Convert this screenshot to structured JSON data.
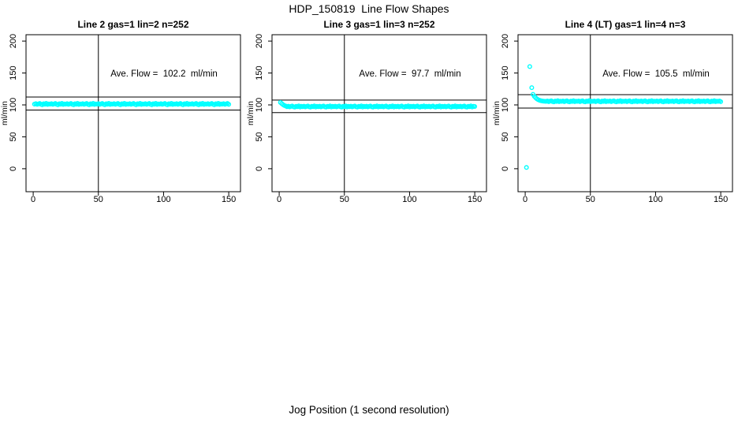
{
  "figure": {
    "main_title": "HDP_150819  Line Flow Shapes",
    "x_axis_label": "Jog Position (1 second resolution)",
    "background_color": "#ffffff",
    "point_color": "#00ffff",
    "axis_color": "#000000"
  },
  "chart_data": [
    {
      "type": "scatter",
      "title": "Line 2 gas=1 lin=2 n=252",
      "annotation": "Ave. Flow =  102.2  ml/min",
      "ave_flow_ml_min": 102.2,
      "ylabel": "ml/min",
      "xticks": [
        0,
        50,
        100,
        150
      ],
      "yticks": [
        0,
        50,
        100,
        150,
        200
      ],
      "xlim": [
        -5.5,
        159
      ],
      "ylim": [
        -36,
        210
      ],
      "hlines": [
        112.4,
        92.0
      ],
      "vline": 50,
      "pre_points": [],
      "band": {
        "x0": 1,
        "dx": 1,
        "y": [
          101.2,
          102,
          100.8,
          101.5,
          102.3,
          101,
          100.4,
          101.8,
          101.1,
          102.4,
          100.7,
          101.6,
          101.2,
          102,
          100.8,
          101.5,
          102.3,
          101,
          100.4,
          101.8,
          101.1,
          102.4,
          100.7,
          101.6,
          101.2,
          102,
          100.8,
          101.5,
          102.3,
          101,
          100.4,
          101.8,
          101.1,
          102.4,
          100.7,
          101.6,
          101.2,
          102,
          100.8,
          101.5,
          102.3,
          101,
          100.4,
          101.8,
          101.1,
          102.4,
          100.7,
          101.6,
          101.2,
          102,
          100.8,
          101.5,
          102.3,
          101,
          100.4,
          101.8,
          101.1,
          102.4,
          100.7,
          101.6,
          101.2,
          102,
          100.8,
          101.5,
          102.3,
          101,
          100.4,
          101.8,
          101.1,
          102.4,
          100.7,
          101.6,
          101.2,
          102,
          100.8,
          101.5,
          102.3,
          101,
          100.4,
          101.8,
          101.1,
          102.4,
          100.7,
          101.6,
          101.2,
          102,
          100.8,
          101.5,
          102.3,
          101,
          100.4,
          101.8,
          101.1,
          102.4,
          100.7,
          101.6,
          101.2,
          102,
          100.8,
          101.5,
          102.3,
          101,
          100.4,
          101.8,
          101.1,
          102.4,
          100.7,
          101.6,
          101.2,
          102,
          100.8,
          101.5,
          102.3,
          101,
          100.4,
          101.8,
          101.1,
          102.4,
          100.7,
          101.6,
          101.2,
          102,
          100.8,
          101.5,
          102.3,
          101,
          100.4,
          101.8,
          101.1,
          102.4,
          100.7,
          101.6,
          101.2,
          102,
          100.8,
          101.5,
          102.3,
          101,
          100.4,
          101.8,
          101.1,
          102.4,
          100.7,
          101.6,
          101.2,
          102,
          100.8,
          101.5,
          102.3,
          101
        ]
      }
    },
    {
      "type": "scatter",
      "title": "Line 3 gas=1 lin=3 n=252",
      "annotation": "Ave. Flow =  97.7  ml/min",
      "ave_flow_ml_min": 97.7,
      "ylabel": "ml/min",
      "xticks": [
        0,
        50,
        100,
        150
      ],
      "yticks": [
        0,
        50,
        100,
        150,
        200
      ],
      "xlim": [
        -5.5,
        159
      ],
      "ylim": [
        -36,
        210
      ],
      "hlines": [
        107.5,
        87.9
      ],
      "vline": 50,
      "pre_points": [],
      "band": {
        "x0": 1,
        "dx": 1,
        "y": [
          103.8,
          101.9,
          100.3,
          99.1,
          98.3,
          97.3,
          98,
          96.9,
          97.6,
          98.3,
          97,
          96.6,
          97.9,
          97.2,
          98.4,
          96.8,
          97.7,
          97.3,
          98,
          96.9,
          97.6,
          98.3,
          97,
          96.6,
          97.9,
          97.2,
          98.4,
          96.8,
          97.7,
          97.3,
          98,
          96.9,
          97.6,
          98.3,
          97,
          96.6,
          97.9,
          97.2,
          98.4,
          96.8,
          97.7,
          97.3,
          98,
          96.9,
          97.6,
          98.3,
          97,
          96.6,
          97.9,
          97.2,
          98.4,
          96.8,
          97.7,
          97.3,
          98,
          96.9,
          97.6,
          98.3,
          97,
          96.6,
          97.9,
          97.2,
          98.4,
          96.8,
          97.7,
          97.3,
          98,
          96.9,
          97.6,
          98.3,
          97,
          96.6,
          97.9,
          97.2,
          98.4,
          96.8,
          97.7,
          97.3,
          98,
          96.9,
          97.6,
          98.3,
          97,
          96.6,
          97.9,
          97.2,
          98.4,
          96.8,
          97.7,
          97.3,
          98,
          96.9,
          97.6,
          98.3,
          97,
          96.6,
          97.9,
          97.2,
          98.4,
          96.8,
          97.7,
          97.3,
          98,
          96.9,
          97.6,
          98.3,
          97,
          96.6,
          97.9,
          97.2,
          98.4,
          96.8,
          97.7,
          97.3,
          98,
          96.9,
          97.6,
          98.3,
          97,
          96.6,
          97.9,
          97.2,
          98.4,
          96.8,
          97.7,
          97.3,
          98,
          96.9,
          97.6,
          98.3,
          97,
          96.6,
          97.9,
          97.2,
          98.4,
          96.8,
          97.7,
          97.3,
          98,
          96.9,
          97.6,
          98.3,
          97,
          96.6,
          97.9,
          97.2,
          98.4,
          96.8,
          97.7,
          97.5
        ]
      }
    },
    {
      "type": "scatter",
      "title": "Line 4 (LT) gas=1 lin=4 n=3",
      "annotation": "Ave. Flow =  105.5  ml/min",
      "ave_flow_ml_min": 105.5,
      "ylabel": "ml/min",
      "xticks": [
        0,
        50,
        100,
        150
      ],
      "yticks": [
        0,
        50,
        100,
        150,
        200
      ],
      "xlim": [
        -5.5,
        159
      ],
      "ylim": [
        -36,
        210
      ],
      "hlines": [
        116.1,
        95.0
      ],
      "vline": 50,
      "pre_points": [
        [
          1,
          2
        ],
        [
          3.5,
          160
        ],
        [
          5,
          127
        ]
      ],
      "band": {
        "x0": 6,
        "dx": 1,
        "y": [
          116.5,
          113.5,
          111.2,
          109.4,
          108.2,
          107.3,
          106.7,
          106.2,
          105.9,
          105.7,
          105.5,
          106.2,
          105,
          105.8,
          106.5,
          105.2,
          104.8,
          106,
          105.4,
          106.6,
          105.1,
          105.9,
          105.5,
          106.2,
          105,
          105.8,
          106.5,
          105.2,
          104.8,
          106,
          105.4,
          106.6,
          105.1,
          105.9,
          105.5,
          106.2,
          105,
          105.8,
          106.5,
          105.2,
          104.8,
          106,
          105.4,
          106.6,
          105.1,
          105.9,
          105.5,
          106.2,
          105,
          105.8,
          106.5,
          105.2,
          104.8,
          106,
          105.4,
          106.6,
          105.1,
          105.9,
          105.5,
          106.2,
          105,
          105.8,
          106.5,
          105.2,
          104.8,
          106,
          105.4,
          106.6,
          105.1,
          105.9,
          105.5,
          106.2,
          105,
          105.8,
          106.5,
          105.2,
          104.8,
          106,
          105.4,
          106.6,
          105.1,
          105.9,
          105.5,
          106.2,
          105,
          105.8,
          106.5,
          105.2,
          104.8,
          106,
          105.4,
          106.6,
          105.1,
          105.9,
          105.5,
          106.2,
          105,
          105.8,
          106.5,
          105.2,
          104.8,
          106,
          105.4,
          106.6,
          105.1,
          105.9,
          105.5,
          106.2,
          105,
          105.8,
          106.5,
          105.2,
          104.8,
          106,
          105.4,
          106.6,
          105.1,
          105.9,
          105.5,
          106.2,
          105,
          105.8,
          106.5,
          105.2,
          104.8,
          106,
          105.4,
          106.6,
          105.1,
          105.9,
          105.5,
          106.2,
          105,
          105.8,
          106.5,
          105.2,
          104.8,
          106,
          105.4,
          106.6,
          105.1,
          105.9,
          105.5,
          106.2,
          105
        ]
      }
    }
  ]
}
